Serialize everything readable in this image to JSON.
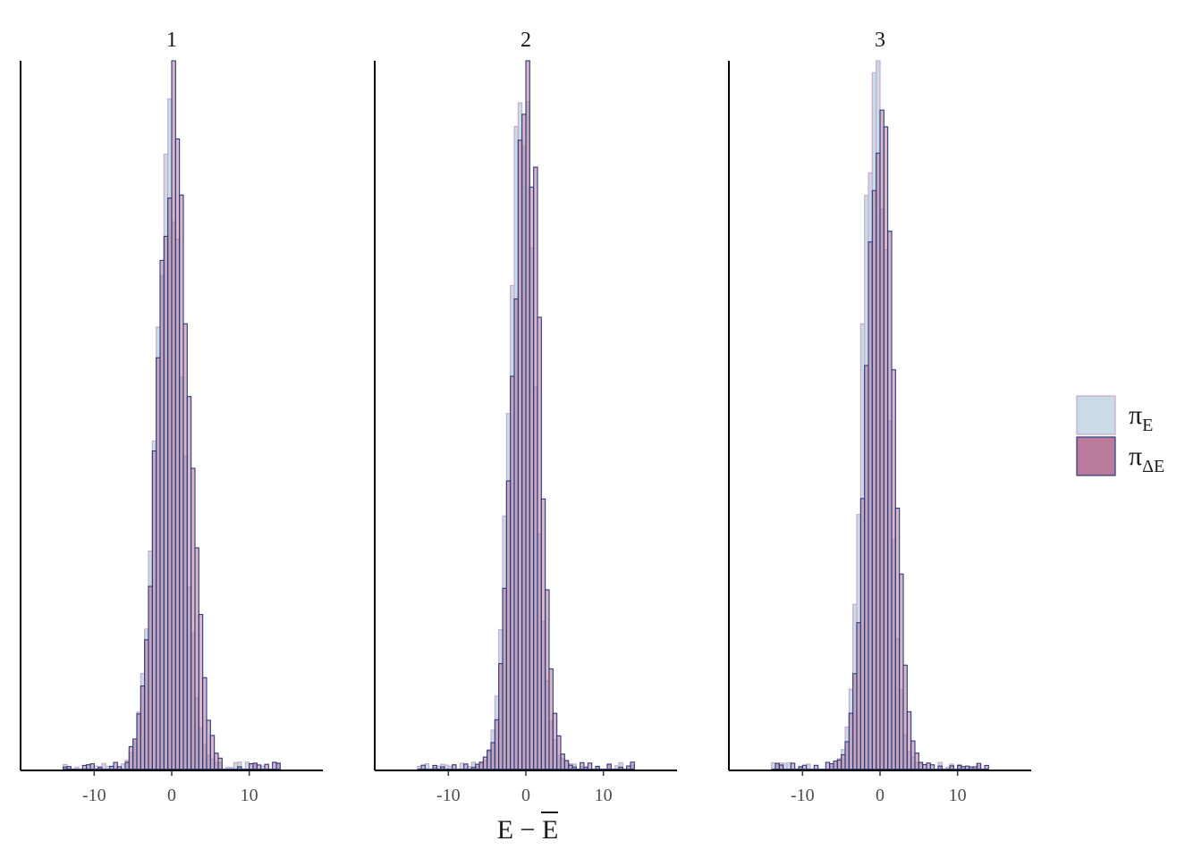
{
  "chart_data": {
    "type": "histogram",
    "xlabel": "E − E̅",
    "xlabel_parts": {
      "left": "E − ",
      "bar_symbol": "E"
    },
    "xlim": [
      -19.5,
      19.5
    ],
    "xticks": [
      -10,
      0,
      10
    ],
    "xtick_labels": [
      "-10",
      "0",
      "10"
    ],
    "bin_width": 0.5,
    "colors": {
      "pi_E_fill": "#c9dbe6",
      "pi_E_stroke": "#c9a6c6",
      "pi_dE_fill": "#b97a9b",
      "pi_dE_stroke": "#2a3a7a",
      "axis": "#000000"
    },
    "legend": {
      "position": "right",
      "entries": [
        {
          "key": "piE",
          "symbol": "π",
          "subscript": "E"
        },
        {
          "key": "piDE",
          "symbol": "π",
          "subscript": "ΔE"
        }
      ]
    },
    "panels": [
      {
        "title": "1",
        "ymax": 1.0,
        "pi_E": {
          "center": -0.4,
          "sigma": 1.7,
          "peak": 0.83,
          "tail_right": 0.22,
          "tail_left": 0.14,
          "range": [
            -14,
            14
          ]
        },
        "pi_dE": {
          "center": 0.3,
          "sigma": 1.95,
          "peak": 0.87,
          "tail_right": 0.12,
          "tail_left": 0.22,
          "range": [
            -14,
            14
          ]
        }
      },
      {
        "title": "2",
        "ymax": 1.0,
        "pi_E": {
          "center": -0.5,
          "sigma": 1.55,
          "peak": 0.9,
          "tail_right": 0.24,
          "tail_left": 0.12,
          "range": [
            -14,
            14
          ]
        },
        "pi_dE": {
          "center": 0.1,
          "sigma": 1.6,
          "peak": 0.97,
          "tail_right": 0.12,
          "tail_left": 0.24,
          "range": [
            -14,
            14
          ]
        }
      },
      {
        "title": "3",
        "ymax": 1.0,
        "pi_E": {
          "center": -0.6,
          "sigma": 1.5,
          "peak": 0.99,
          "tail_right": 0.2,
          "tail_left": 0.12,
          "range": [
            -14,
            14
          ]
        },
        "pi_dE": {
          "center": 0.1,
          "sigma": 1.6,
          "peak": 0.94,
          "tail_right": 0.12,
          "tail_left": 0.22,
          "range": [
            -14,
            14
          ]
        }
      }
    ]
  }
}
